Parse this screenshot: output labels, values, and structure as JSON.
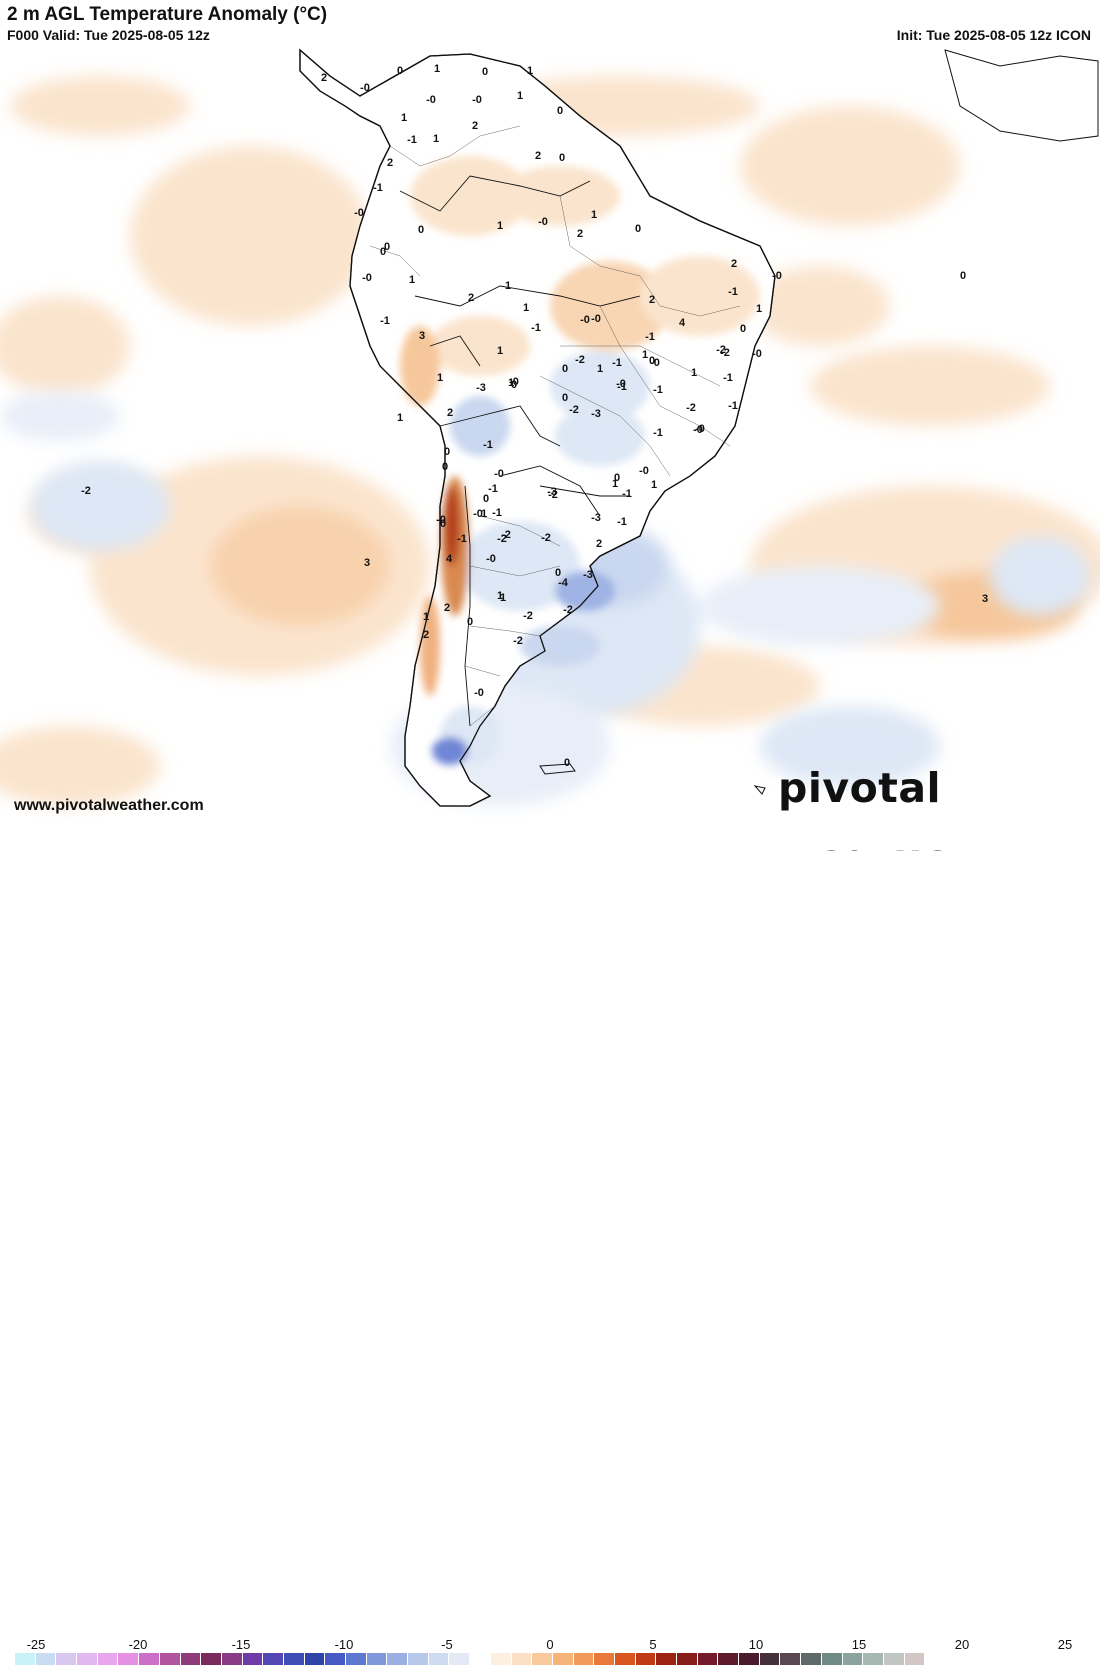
{
  "header": {
    "title": "2 m AGL Temperature Anomaly (°C)",
    "valid": "F000 Valid: Tue 2025-08-05 12z",
    "init": "Init: Tue 2025-08-05 12z ICON"
  },
  "footer": {
    "website": "www.pivotalweather.com",
    "logo": "pivotal weather"
  },
  "colors": {
    "ocean_base": "#ffffff",
    "warm_light": "#fbe4cd",
    "warm_mid": "#f6c79b",
    "warm_strong": "#e9955a",
    "hot": "#b5431a",
    "cool_light": "#dde7f5",
    "cool_mid": "#b7c9ea",
    "cool_strong": "#6f86d6",
    "land_outline": "#111111"
  },
  "colorbar": {
    "tick_labels": [
      "-25",
      "-20",
      "-15",
      "-10",
      "-5",
      "0",
      "5",
      "10",
      "15",
      "20",
      "25"
    ],
    "swatches": [
      "#c9f2f8",
      "#c8ddf2",
      "#d8c8f0",
      "#e3b7ef",
      "#e9a6ec",
      "#e590e3",
      "#cc6fc9",
      "#b0559e",
      "#8f3b7b",
      "#7a2a5d",
      "#8b3b86",
      "#6f3ba6",
      "#5546b5",
      "#3c4db8",
      "#2f44a8",
      "#4659c4",
      "#5d78d0",
      "#7e98da",
      "#9bb0e2",
      "#b7c9ea",
      "#cfdbf1",
      "#e3eaf6",
      "#ffffff",
      "#fdf0e2",
      "#fbe0c6",
      "#f9c99c",
      "#f6b47a",
      "#f19a5a",
      "#e8793a",
      "#d9571f",
      "#c03a16",
      "#9f2312",
      "#871c18",
      "#741a2a",
      "#5e1c2a",
      "#4a1a2d",
      "#44303a",
      "#5a4850",
      "#5f6b6b",
      "#6f8a84",
      "#8aa39c",
      "#a7b8b2",
      "#c2c6c2",
      "#d2c7c4"
    ]
  },
  "map_labels": [
    {
      "text": "2"
    },
    {
      "text": "0"
    },
    {
      "text": "1"
    },
    {
      "text": "-0"
    },
    {
      "text": "0"
    },
    {
      "text": "1"
    },
    {
      "text": "1"
    },
    {
      "text": "-1"
    },
    {
      "text": "2"
    },
    {
      "text": "-0"
    },
    {
      "text": "1"
    },
    {
      "text": "0"
    },
    {
      "text": "-1"
    },
    {
      "text": "-0"
    },
    {
      "text": "0"
    },
    {
      "text": "1"
    },
    {
      "text": "-0"
    },
    {
      "text": "0"
    },
    {
      "text": "2"
    },
    {
      "text": "1"
    },
    {
      "text": "0"
    },
    {
      "text": "2"
    },
    {
      "text": "1"
    },
    {
      "text": "2"
    },
    {
      "text": "-0"
    },
    {
      "text": "0"
    },
    {
      "text": "1"
    },
    {
      "text": "-1"
    },
    {
      "text": "-0"
    },
    {
      "text": "-0"
    },
    {
      "text": "0"
    },
    {
      "text": "1"
    },
    {
      "text": "1"
    },
    {
      "text": "2"
    },
    {
      "text": "0"
    },
    {
      "text": "1"
    },
    {
      "text": "-0"
    },
    {
      "text": "1"
    },
    {
      "text": "1"
    },
    {
      "text": "-1"
    },
    {
      "text": "-0"
    },
    {
      "text": "1"
    },
    {
      "text": "2"
    },
    {
      "text": "4"
    },
    {
      "text": "-1"
    },
    {
      "text": "1"
    },
    {
      "text": "-0"
    },
    {
      "text": "2"
    },
    {
      "text": "-2"
    },
    {
      "text": "-1"
    },
    {
      "text": "1"
    },
    {
      "text": "0"
    },
    {
      "text": "-2"
    },
    {
      "text": "-1"
    },
    {
      "text": "-0"
    },
    {
      "text": "-1"
    },
    {
      "text": "-2"
    },
    {
      "text": "-1"
    },
    {
      "text": "1"
    },
    {
      "text": "-1"
    },
    {
      "text": "-3"
    },
    {
      "text": "0"
    },
    {
      "text": "-0"
    },
    {
      "text": "2"
    },
    {
      "text": "0"
    },
    {
      "text": "-3"
    },
    {
      "text": "0"
    },
    {
      "text": "-1"
    },
    {
      "text": "-2"
    },
    {
      "text": "-0"
    },
    {
      "text": "1"
    },
    {
      "text": "-1"
    },
    {
      "text": "0"
    },
    {
      "text": "1"
    },
    {
      "text": "1"
    },
    {
      "text": "-1"
    },
    {
      "text": "0"
    },
    {
      "text": "-2"
    },
    {
      "text": "-0"
    },
    {
      "text": "1"
    },
    {
      "text": "0"
    },
    {
      "text": "-1"
    },
    {
      "text": "-0"
    },
    {
      "text": "-1"
    },
    {
      "text": "-0"
    },
    {
      "text": "-2"
    },
    {
      "text": "0"
    },
    {
      "text": "3"
    },
    {
      "text": "1"
    },
    {
      "text": "-0"
    },
    {
      "text": "-3"
    },
    {
      "text": "-1"
    },
    {
      "text": "-0"
    },
    {
      "text": "-1"
    },
    {
      "text": "-2"
    },
    {
      "text": "-4"
    },
    {
      "text": "-2"
    },
    {
      "text": "-3"
    },
    {
      "text": "-0"
    },
    {
      "text": "0"
    },
    {
      "text": "-3"
    },
    {
      "text": "3"
    },
    {
      "text": "2"
    },
    {
      "text": "1"
    },
    {
      "text": "-2"
    },
    {
      "text": "2"
    },
    {
      "text": "0"
    },
    {
      "text": "-2"
    },
    {
      "text": "-2"
    },
    {
      "text": "-1"
    },
    {
      "text": "4"
    },
    {
      "text": "3"
    },
    {
      "text": "-0"
    },
    {
      "text": "0"
    },
    {
      "text": "-2"
    },
    {
      "text": "0"
    },
    {
      "text": "2"
    },
    {
      "text": "1"
    },
    {
      "text": "-0"
    },
    {
      "text": "-2"
    },
    {
      "text": "0"
    }
  ]
}
